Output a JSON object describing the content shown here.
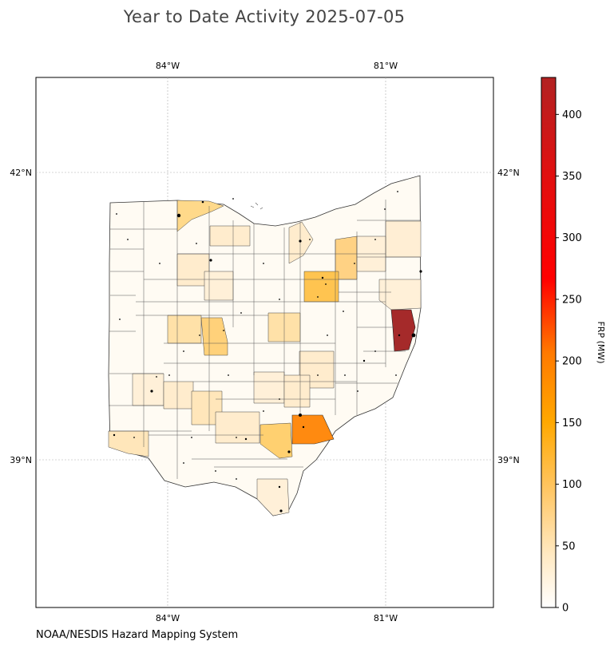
{
  "title": "Year to Date Activity 2025-07-05",
  "credit": "NOAA/NESDIS Hazard Mapping System",
  "map": {
    "lon_ticks": [
      {
        "value": -84,
        "label": "84°W"
      },
      {
        "value": -81,
        "label": "81°W"
      }
    ],
    "lat_ticks": [
      {
        "value": 42,
        "label": "42°N"
      },
      {
        "value": 39,
        "label": "39°N"
      }
    ],
    "gridlines": true
  },
  "colorbar": {
    "label": "FRP (MW)",
    "range": [
      0,
      430
    ],
    "ticks": [
      "0",
      "50",
      "100",
      "150",
      "200",
      "250",
      "300",
      "350",
      "400"
    ],
    "colors": [
      "#ffffff",
      "#ffe9c2",
      "#ffc45e",
      "#ffa800",
      "#ff5a00",
      "#ff0000",
      "#e01010",
      "#b22222"
    ]
  },
  "chart_data": {
    "type": "heatmap",
    "region": "Ohio counties",
    "value_label": "FRP (MW)",
    "notable": [
      {
        "area": "eastern border county (Ohio River)",
        "value": 420
      },
      {
        "area": "southeastern county",
        "value": 160
      },
      {
        "area": "north-central county",
        "value": 100
      },
      {
        "area": "south-central county",
        "value": 90
      },
      {
        "area": "northwest lakeshore county",
        "value": 75
      }
    ]
  }
}
